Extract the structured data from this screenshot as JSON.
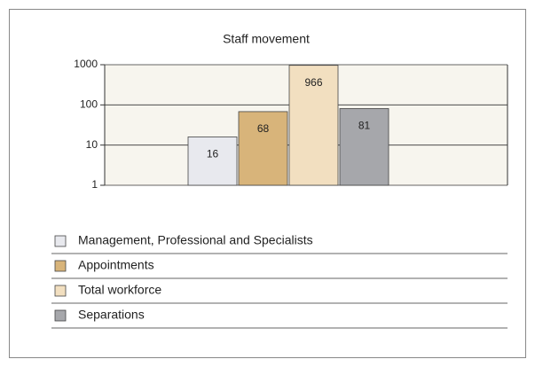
{
  "chart_data": {
    "type": "bar",
    "title": "Staff movement",
    "categories": [
      null
    ],
    "series": [
      {
        "name": "Management, Professional and Specialists",
        "color": "#e8e9ee",
        "values": [
          16
        ]
      },
      {
        "name": "Appointments",
        "color": "#d8b47a",
        "values": [
          68
        ]
      },
      {
        "name": "Total workforce",
        "color": "#f2dfc0",
        "values": [
          966
        ]
      },
      {
        "name": "Separations",
        "color": "#a6a7ab",
        "values": [
          81
        ]
      }
    ],
    "ylim": [
      1,
      1000
    ],
    "yticks": [
      1,
      10,
      100,
      1000
    ],
    "log_scale": true,
    "grid": true,
    "legend": "bottom"
  }
}
